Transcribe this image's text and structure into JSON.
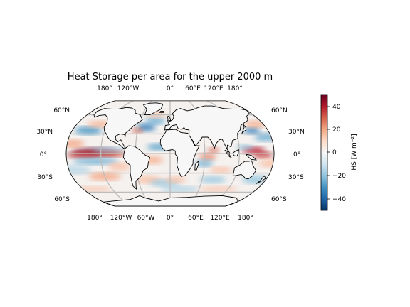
{
  "title": "Heat Storage per area for the upper 2000 m",
  "map": {
    "projection": "robinson",
    "gridlines": true,
    "top_lon_labels": [
      "180°",
      "120°W",
      "0°",
      "60°E",
      "120°E",
      "180°"
    ],
    "bottom_lon_labels": [
      "180°",
      "120°W",
      "60°W",
      "0°",
      "60°E",
      "120°E",
      "180°"
    ],
    "left_lat_labels": [
      "60°N",
      "30°N",
      "0°",
      "30°S",
      "60°S"
    ],
    "right_lat_labels": [
      "60°N",
      "30°N",
      "0°",
      "30°S",
      "60°S"
    ]
  },
  "colorbar": {
    "colormap": "RdBu_r",
    "min": -50,
    "max": 50,
    "ticks": [
      "40",
      "20",
      "0",
      "−20",
      "−40"
    ],
    "label": "HS [W m⁻²]",
    "colors": [
      "#053061",
      "#2166ac",
      "#4393c3",
      "#92c5de",
      "#d1e5f0",
      "#f7f7f7",
      "#fddbc7",
      "#f4a582",
      "#d6604d",
      "#b2182b",
      "#67001f"
    ]
  }
}
